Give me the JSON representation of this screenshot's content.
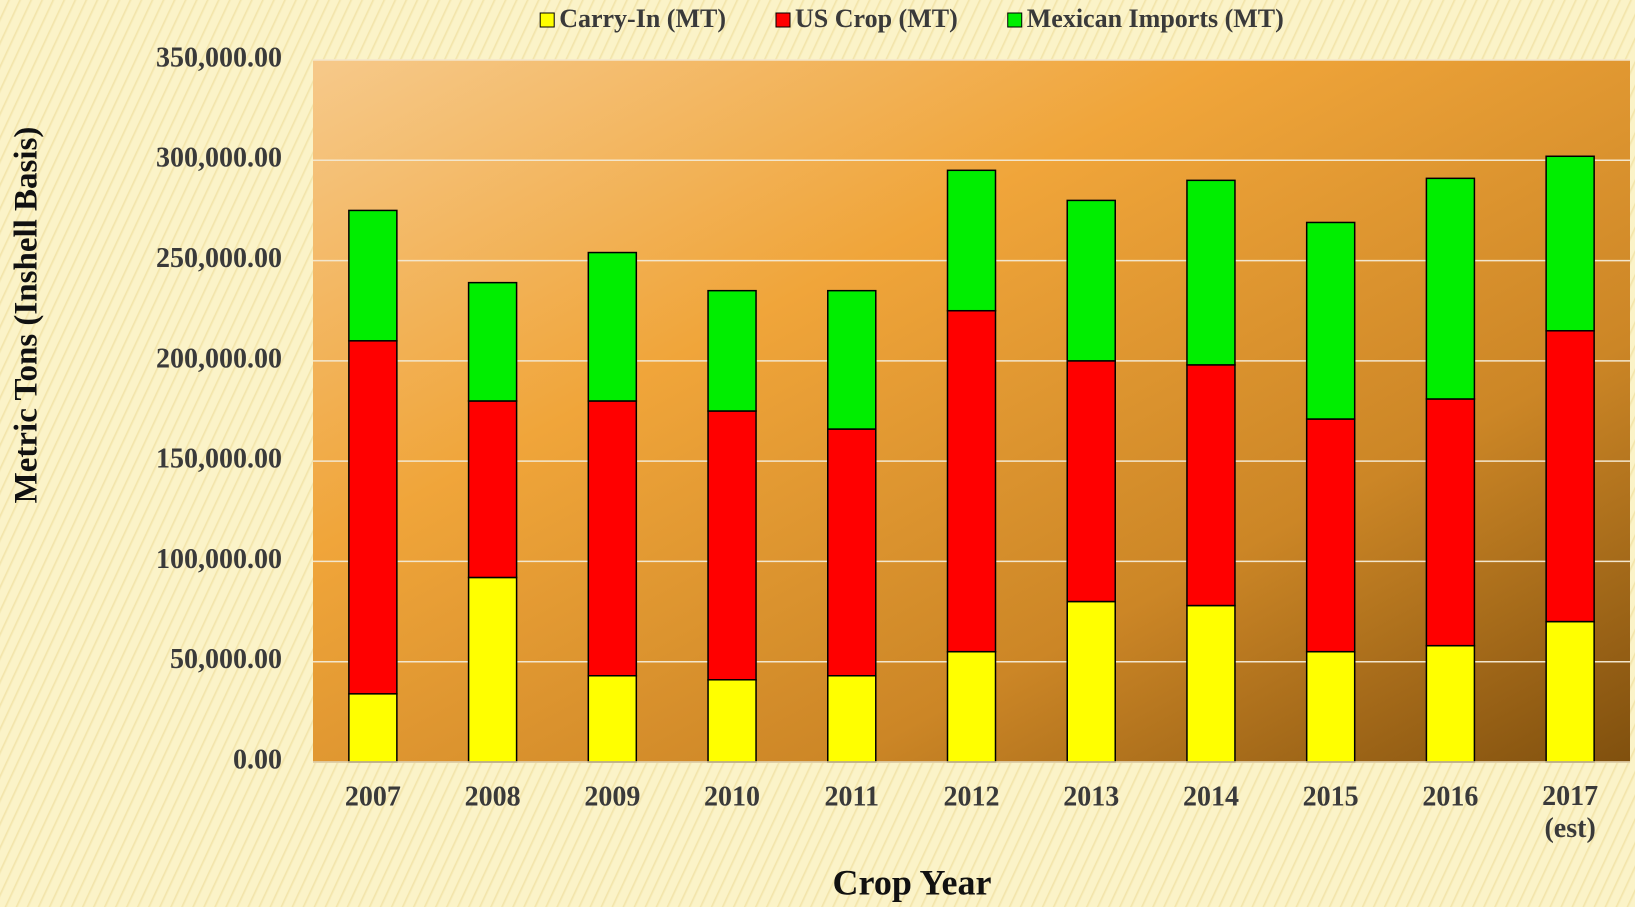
{
  "chart_data": {
    "type": "stacked_bar",
    "xlabel": "Crop Year",
    "ylabel": "Metric Tons (Inshell Basis)",
    "categories": [
      "2007",
      "2008",
      "2009",
      "2010",
      "2011",
      "2012",
      "2013",
      "2014",
      "2015",
      "2016",
      "2017 (est)"
    ],
    "series": [
      {
        "name": "Carry-In (MT)",
        "color": "#ffff00",
        "values": [
          34000,
          92000,
          43000,
          41000,
          43000,
          55000,
          80000,
          78000,
          55000,
          58000,
          70000
        ]
      },
      {
        "name": "US Crop (MT)",
        "color": "#ff0000",
        "values": [
          176000,
          88000,
          137000,
          134000,
          123000,
          170000,
          120000,
          120000,
          116000,
          123000,
          145000
        ]
      },
      {
        "name": "Mexican Imports (MT)",
        "color": "#00ee00",
        "values": [
          65000,
          59000,
          74000,
          60000,
          69000,
          70000,
          80000,
          92000,
          98000,
          110000,
          87000
        ]
      }
    ],
    "ylim": [
      0,
      350000
    ],
    "yticks": [
      {
        "value": 0,
        "label": "0.00"
      },
      {
        "value": 50000,
        "label": "50,000.00"
      },
      {
        "value": 100000,
        "label": "100,000.00"
      },
      {
        "value": 150000,
        "label": "150,000.00"
      },
      {
        "value": 200000,
        "label": "200,000.00"
      },
      {
        "value": 250000,
        "label": "250,000.00"
      },
      {
        "value": 300000,
        "label": "300,000.00"
      },
      {
        "value": 350000,
        "label": "350,000.00"
      }
    ],
    "grid": true,
    "legend": "top"
  }
}
